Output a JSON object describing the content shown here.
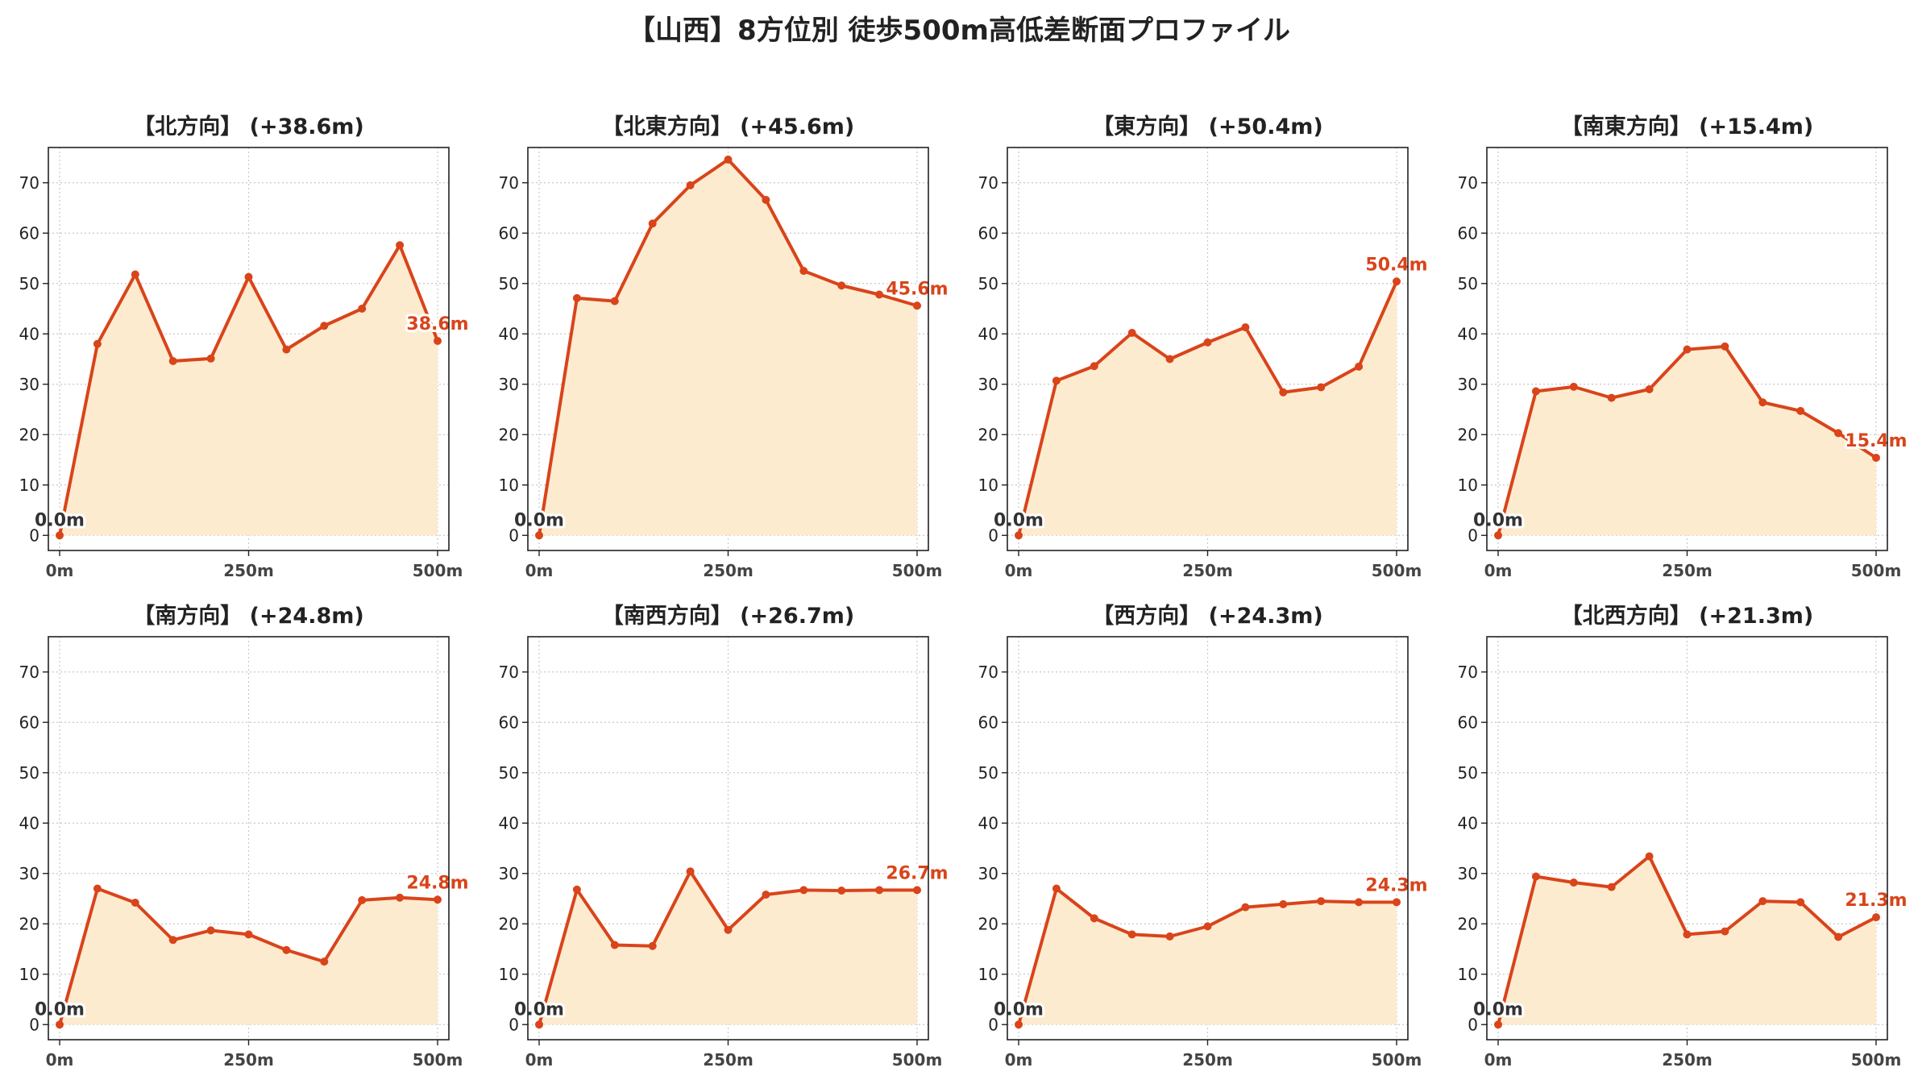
{
  "title": "【山西】8方位別 徒歩500m高低差断面プロファイル",
  "colors": {
    "line": "#d9441a",
    "fill": "#fdebd0",
    "grid": "#c8c8c8",
    "axis": "#222222"
  },
  "chart_data": [
    {
      "type": "area",
      "title": "【北方向】 (+38.6m)",
      "x": [
        0,
        50,
        100,
        150,
        200,
        250,
        300,
        350,
        400,
        450,
        500
      ],
      "values": [
        0.0,
        38.0,
        51.8,
        34.6,
        35.1,
        51.3,
        36.9,
        41.6,
        45.0,
        57.6,
        38.6
      ],
      "start_label": "0.0m",
      "end_label": "38.6m",
      "ylim": [
        0,
        77
      ],
      "yticks": [
        0,
        10,
        20,
        30,
        40,
        50,
        60,
        70
      ],
      "xticks": [
        0,
        250,
        500
      ],
      "xtick_labels": [
        "0m",
        "250m",
        "500m"
      ],
      "grid": true
    },
    {
      "type": "area",
      "title": "【北東方向】 (+45.6m)",
      "x": [
        0,
        50,
        100,
        150,
        200,
        250,
        300,
        350,
        400,
        450,
        500
      ],
      "values": [
        0.0,
        47.1,
        46.5,
        61.9,
        69.5,
        74.6,
        66.6,
        52.5,
        49.6,
        47.8,
        45.6
      ],
      "start_label": "0.0m",
      "end_label": "45.6m",
      "ylim": [
        0,
        77
      ],
      "yticks": [
        0,
        10,
        20,
        30,
        40,
        50,
        60,
        70
      ],
      "xticks": [
        0,
        250,
        500
      ],
      "xtick_labels": [
        "0m",
        "250m",
        "500m"
      ],
      "grid": true
    },
    {
      "type": "area",
      "title": "【東方向】 (+50.4m)",
      "x": [
        0,
        50,
        100,
        150,
        200,
        250,
        300,
        350,
        400,
        450,
        500
      ],
      "values": [
        0.0,
        30.7,
        33.6,
        40.2,
        35.0,
        38.3,
        41.3,
        28.4,
        29.4,
        33.5,
        50.4
      ],
      "start_label": "0.0m",
      "end_label": "50.4m",
      "ylim": [
        0,
        77
      ],
      "yticks": [
        0,
        10,
        20,
        30,
        40,
        50,
        60,
        70
      ],
      "xticks": [
        0,
        250,
        500
      ],
      "xtick_labels": [
        "0m",
        "250m",
        "500m"
      ],
      "grid": true
    },
    {
      "type": "area",
      "title": "【南東方向】 (+15.4m)",
      "x": [
        0,
        50,
        100,
        150,
        200,
        250,
        300,
        350,
        400,
        450,
        500
      ],
      "values": [
        0.0,
        28.6,
        29.5,
        27.3,
        29.0,
        36.9,
        37.5,
        26.4,
        24.7,
        20.3,
        15.4
      ],
      "start_label": "0.0m",
      "end_label": "15.4m",
      "ylim": [
        0,
        77
      ],
      "yticks": [
        0,
        10,
        20,
        30,
        40,
        50,
        60,
        70
      ],
      "xticks": [
        0,
        250,
        500
      ],
      "xtick_labels": [
        "0m",
        "250m",
        "500m"
      ],
      "grid": true
    },
    {
      "type": "area",
      "title": "【南方向】 (+24.8m)",
      "x": [
        0,
        50,
        100,
        150,
        200,
        250,
        300,
        350,
        400,
        450,
        500
      ],
      "values": [
        0.0,
        27.0,
        24.2,
        16.8,
        18.7,
        17.9,
        14.8,
        12.5,
        24.7,
        25.2,
        24.8
      ],
      "start_label": "0.0m",
      "end_label": "24.8m",
      "ylim": [
        0,
        77
      ],
      "yticks": [
        0,
        10,
        20,
        30,
        40,
        50,
        60,
        70
      ],
      "xticks": [
        0,
        250,
        500
      ],
      "xtick_labels": [
        "0m",
        "250m",
        "500m"
      ],
      "grid": true
    },
    {
      "type": "area",
      "title": "【南西方向】 (+26.7m)",
      "x": [
        0,
        50,
        100,
        150,
        200,
        250,
        300,
        350,
        400,
        450,
        500
      ],
      "values": [
        0.0,
        26.8,
        15.8,
        15.6,
        30.4,
        18.8,
        25.8,
        26.7,
        26.6,
        26.7,
        26.7
      ],
      "start_label": "0.0m",
      "end_label": "26.7m",
      "ylim": [
        0,
        77
      ],
      "yticks": [
        0,
        10,
        20,
        30,
        40,
        50,
        60,
        70
      ],
      "xticks": [
        0,
        250,
        500
      ],
      "xtick_labels": [
        "0m",
        "250m",
        "500m"
      ],
      "grid": true
    },
    {
      "type": "area",
      "title": "【西方向】 (+24.3m)",
      "x": [
        0,
        50,
        100,
        150,
        200,
        250,
        300,
        350,
        400,
        450,
        500
      ],
      "values": [
        0.0,
        27.0,
        21.1,
        17.9,
        17.5,
        19.5,
        23.3,
        23.9,
        24.5,
        24.3,
        24.3
      ],
      "start_label": "0.0m",
      "end_label": "24.3m",
      "ylim": [
        0,
        77
      ],
      "yticks": [
        0,
        10,
        20,
        30,
        40,
        50,
        60,
        70
      ],
      "xticks": [
        0,
        250,
        500
      ],
      "xtick_labels": [
        "0m",
        "250m",
        "500m"
      ],
      "grid": true
    },
    {
      "type": "area",
      "title": "【北西方向】 (+21.3m)",
      "x": [
        0,
        50,
        100,
        150,
        200,
        250,
        300,
        350,
        400,
        450,
        500
      ],
      "values": [
        0.0,
        29.4,
        28.2,
        27.3,
        33.4,
        17.9,
        18.5,
        24.5,
        24.3,
        17.4,
        21.3
      ],
      "start_label": "0.0m",
      "end_label": "21.3m",
      "ylim": [
        0,
        77
      ],
      "yticks": [
        0,
        10,
        20,
        30,
        40,
        50,
        60,
        70
      ],
      "xticks": [
        0,
        250,
        500
      ],
      "xtick_labels": [
        "0m",
        "250m",
        "500m"
      ],
      "grid": true
    }
  ]
}
